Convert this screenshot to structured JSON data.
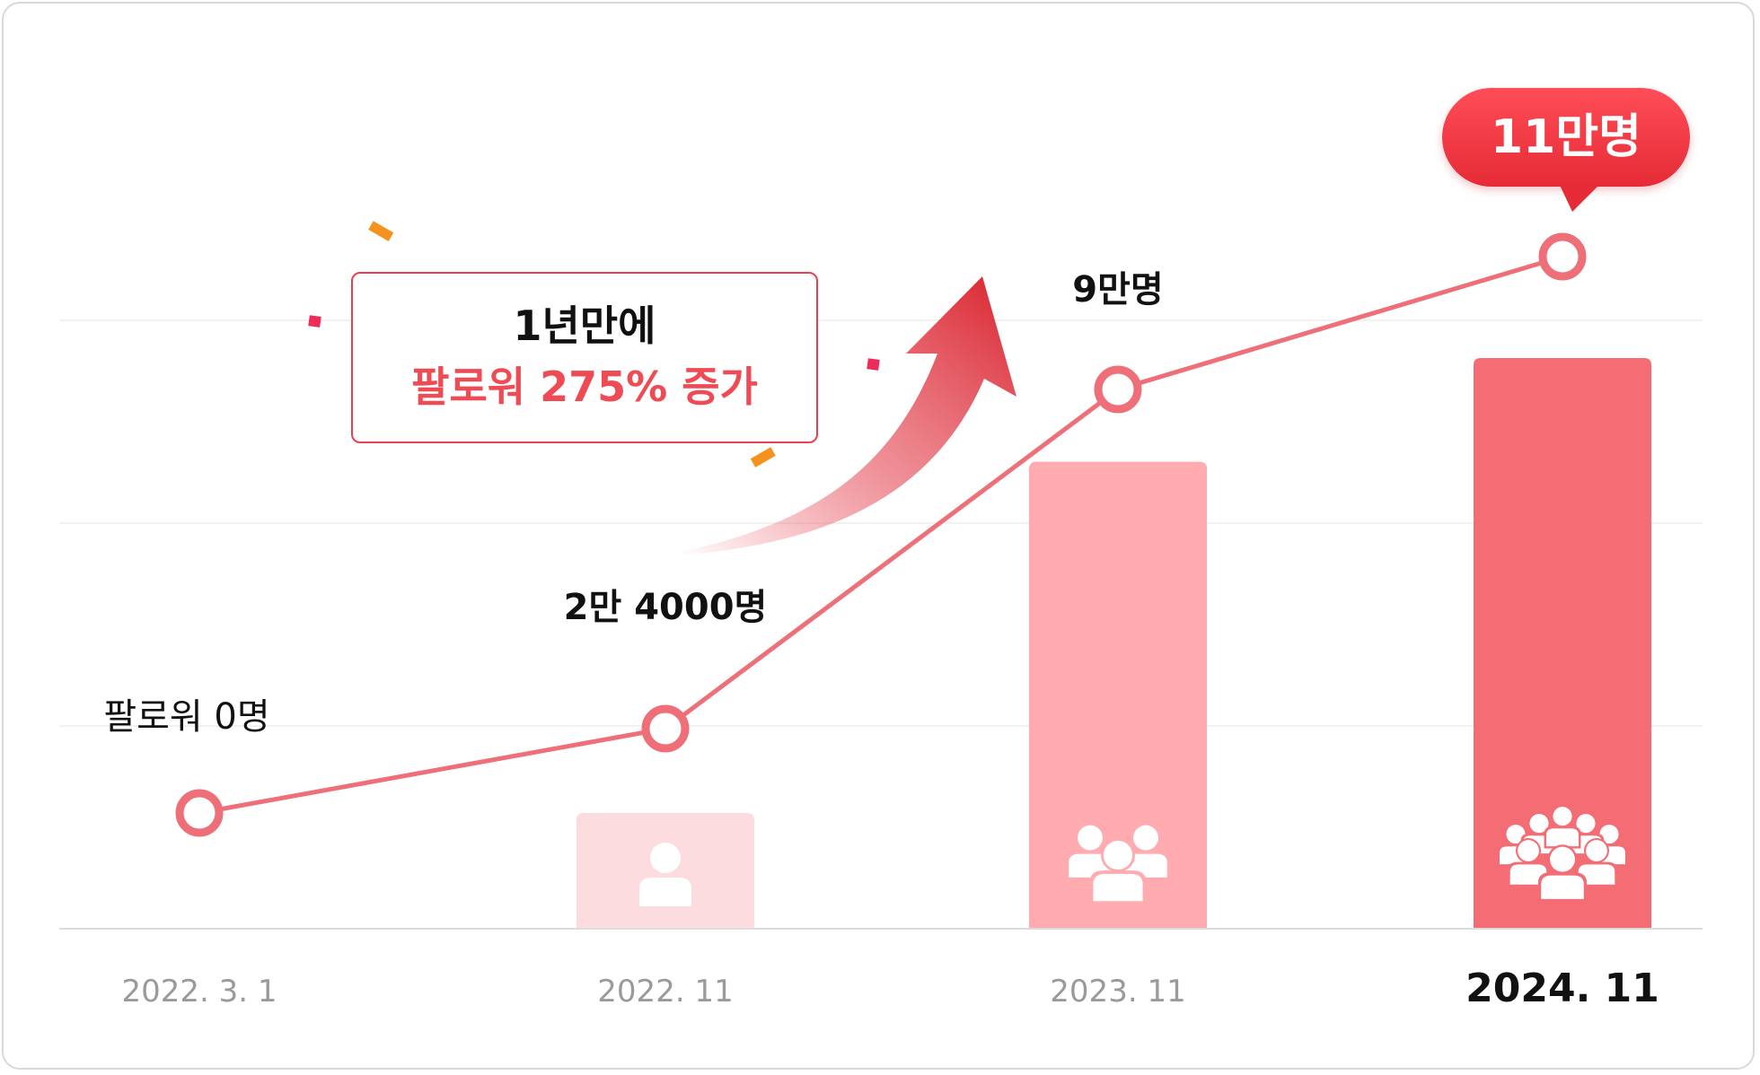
{
  "chart_data": {
    "type": "bar",
    "categories": [
      "2022. 3. 1",
      "2022. 11",
      "2023. 11",
      "2024. 11"
    ],
    "values": [
      0,
      24000,
      90000,
      110000
    ],
    "series": [
      {
        "values": [
          0,
          24000,
          90000,
          110000
        ],
        "labels": [
          "팔로워 0명",
          "2만 4000명",
          "9만명",
          "11만명"
        ]
      }
    ],
    "callout": {
      "line1": "1년만에",
      "line2": "팔로워 275% 증가"
    },
    "highlight_label": "11만명",
    "grid": true,
    "colors": {
      "line": "#ee6f78",
      "marker_stroke": "#ee6f78",
      "bars": [
        "#fddcdf",
        "#ffabb0",
        "#f46d75"
      ],
      "accent": "#e52b36",
      "axis_label": "#9a9a9a",
      "axis_label_highlight": "#111111"
    },
    "icons": [
      "person-icon",
      "people-group-icon",
      "crowd-icon"
    ]
  }
}
